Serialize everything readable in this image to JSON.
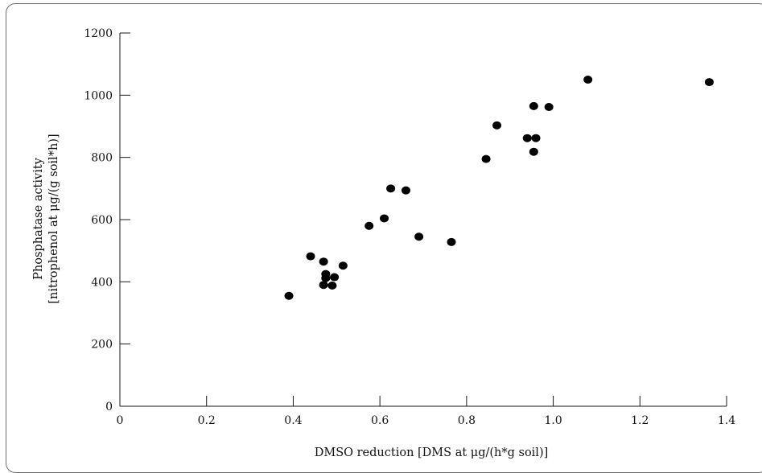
{
  "chart_data": {
    "type": "scatter",
    "title": "",
    "xlabel": "DMSO reduction [DMS at μg/(h*g soil)]",
    "ylabel_line1": "Phosphatase activity",
    "ylabel_line2": "[nitrophenol at μg/(g soil*h)]",
    "xlim": [
      0,
      1.4
    ],
    "ylim": [
      0,
      1200
    ],
    "x_ticks": [
      0,
      0.2,
      0.4,
      0.6,
      0.8,
      1.0,
      1.2,
      1.4
    ],
    "x_tick_labels": [
      "0",
      "0.2",
      "0.4",
      "0.6",
      "0.8",
      "1.0",
      "1.2",
      "1.4"
    ],
    "y_ticks": [
      0,
      200,
      400,
      600,
      800,
      1000,
      1200
    ],
    "y_tick_labels": [
      "0",
      "200",
      "400",
      "600",
      "800",
      "1000",
      "1200"
    ],
    "grid": false,
    "marker_color": "#000000",
    "points": [
      {
        "x": 0.39,
        "y": 355
      },
      {
        "x": 0.44,
        "y": 482
      },
      {
        "x": 0.47,
        "y": 465
      },
      {
        "x": 0.47,
        "y": 390
      },
      {
        "x": 0.475,
        "y": 425
      },
      {
        "x": 0.475,
        "y": 412
      },
      {
        "x": 0.49,
        "y": 388
      },
      {
        "x": 0.495,
        "y": 415
      },
      {
        "x": 0.515,
        "y": 452
      },
      {
        "x": 0.575,
        "y": 580
      },
      {
        "x": 0.61,
        "y": 604
      },
      {
        "x": 0.625,
        "y": 700
      },
      {
        "x": 0.66,
        "y": 694
      },
      {
        "x": 0.69,
        "y": 545
      },
      {
        "x": 0.765,
        "y": 528
      },
      {
        "x": 0.845,
        "y": 795
      },
      {
        "x": 0.87,
        "y": 903
      },
      {
        "x": 0.94,
        "y": 862
      },
      {
        "x": 0.955,
        "y": 965
      },
      {
        "x": 0.955,
        "y": 818
      },
      {
        "x": 0.96,
        "y": 862
      },
      {
        "x": 0.99,
        "y": 962
      },
      {
        "x": 1.08,
        "y": 1050
      },
      {
        "x": 1.36,
        "y": 1042
      }
    ]
  }
}
